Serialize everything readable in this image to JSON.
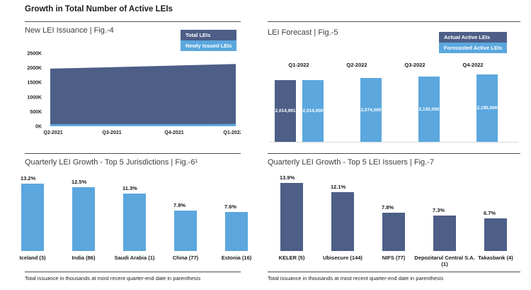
{
  "title": "Growth in Total Number of Active LEIs",
  "colors": {
    "dark_blue": "#4d5e87",
    "light_blue": "#5ba7de",
    "divider": "#4d4d4d",
    "baseline_gray": "#d9d9d9"
  },
  "footnotes": {
    "left": "Total issuance in thousands at most recent quarter-end date in parenthesis",
    "right": "Total issuance in thousands at most recent quarter-end date in parenthesis"
  },
  "panels": [
    {
      "id": "issuance",
      "title": "New LEI Issuance | Fig.-4",
      "legend": [
        {
          "label": "Total LEIs",
          "colorKey": "dark_blue"
        },
        {
          "label": "Newly Issued LEIs",
          "colorKey": "light_blue"
        }
      ]
    },
    {
      "id": "forecast",
      "title": "LEI Forecast | Fig.-5",
      "legend": [
        {
          "label": "Actual Active LEIs",
          "colorKey": "dark_blue"
        },
        {
          "label": "Forecasted Active LEIs",
          "colorKey": "light_blue"
        }
      ]
    },
    {
      "id": "jurisdictions",
      "title": "Quarterly LEI Growth - Top 5 Jurisdictions | Fig.-6¹"
    },
    {
      "id": "issuers",
      "title": "Quarterly LEI Growth - Top 5 LEI Issuers | Fig.-7"
    }
  ],
  "chart_data": [
    {
      "type": "area",
      "title": "New LEI Issuance | Fig.-4",
      "categories": [
        "Q2-2021",
        "Q3-2021",
        "Q4-2021",
        "Q1-2022"
      ],
      "series": [
        {
          "name": "Total LEIs",
          "values": [
            1970,
            2020,
            2075,
            2130
          ],
          "color": "#4d5e87"
        },
        {
          "name": "Newly Issued LEIs",
          "values": [
            70,
            70,
            70,
            75
          ],
          "color": "#5ba7de"
        }
      ],
      "unit": "thousands",
      "ylim": [
        0,
        2500
      ],
      "yticks": [
        {
          "value": 2500,
          "label": "2500K"
        },
        {
          "value": 2000,
          "label": "2000K"
        },
        {
          "value": 1500,
          "label": "1500K"
        },
        {
          "value": 1000,
          "label": "1000K"
        },
        {
          "value": 500,
          "label": "500K"
        },
        {
          "value": 0,
          "label": "0K"
        }
      ],
      "grid": false,
      "legend_position": "top-right"
    },
    {
      "type": "bar",
      "title": "LEI Forecast | Fig.-5",
      "categories": [
        "Q1-2022",
        "Q2-2022",
        "Q3-2022",
        "Q4-2022"
      ],
      "series": [
        {
          "name": "Actual Active LEIs",
          "color": "#4d5e87",
          "values": [
            2014991,
            null,
            null,
            null
          ],
          "labels": [
            "2,014,991",
            null,
            null,
            null
          ]
        },
        {
          "name": "Forecasted Active LEIs",
          "color": "#5ba7de",
          "values": [
            2014000,
            2074000,
            2130000,
            2195000
          ],
          "labels": [
            "2,014,000",
            "2,074,000",
            "2,130,000",
            "2,195,000"
          ]
        }
      ],
      "category_label_position": "above",
      "value_label_position": "inside-center-white",
      "ylim": [
        0,
        2400000
      ],
      "legend_position": "top-right"
    },
    {
      "type": "bar",
      "title": "Quarterly LEI Growth - Top 5 Jurisdictions | Fig.-6¹",
      "categories": [
        "Iceland (3)",
        "India (86)",
        "Saudi Arabia (1)",
        "China (77)",
        "Estonia (16)"
      ],
      "values": [
        13.2,
        12.5,
        11.3,
        7.9,
        7.6
      ],
      "labels": [
        "13.2%",
        "12.5%",
        "11.3%",
        "7.9%",
        "7.6%"
      ],
      "unit": "percent",
      "color": "#5ba7de",
      "grid": false
    },
    {
      "type": "bar",
      "title": "Quarterly LEI Growth - Top 5 LEI Issuers | Fig.-7",
      "categories": [
        "KELER (5)",
        "Ubisecure (144)",
        "NIFS (77)",
        "Depozitarul Central S.A. (1)",
        "Takasbank (4)"
      ],
      "values": [
        13.9,
        12.1,
        7.8,
        7.3,
        6.7
      ],
      "labels": [
        "13.9%",
        "12.1%",
        "7.8%",
        "7.3%",
        "6.7%"
      ],
      "unit": "percent",
      "color": "#4d5e87",
      "grid": false
    }
  ]
}
